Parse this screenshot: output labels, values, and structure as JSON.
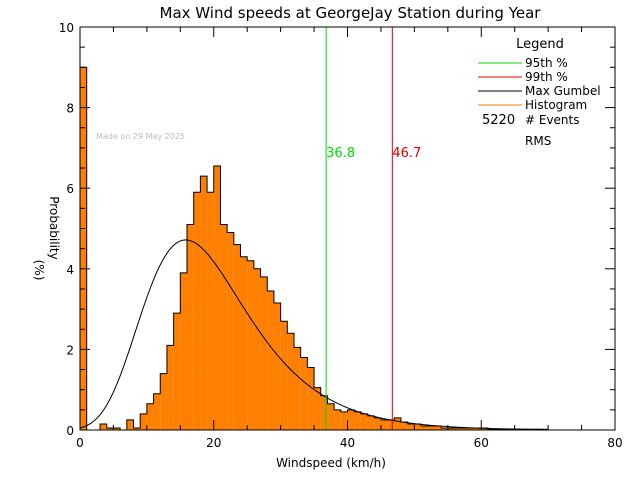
{
  "chart_data": {
    "type": "bar",
    "title": "Max Wind speeds at GeorgeJay Station during Year",
    "xlabel": "Windspeed (km/h)",
    "ylabel_top": "Probability",
    "ylabel_bottom": "(%)",
    "xlim": [
      0,
      80
    ],
    "ylim": [
      0,
      10
    ],
    "x_ticks": [
      "0",
      "20",
      "40",
      "60",
      "80"
    ],
    "y_ticks": [
      "0",
      "2",
      "4",
      "6",
      "8",
      "10"
    ],
    "watermark": "Made on 29 May 2025",
    "bin_width": 1,
    "histogram": {
      "name": "Histogram",
      "color": "#ff7f00",
      "values": [
        9.0,
        0.0,
        0.0,
        0.15,
        0.05,
        0.05,
        0.0,
        0.25,
        0.05,
        0.4,
        0.65,
        0.9,
        1.4,
        2.1,
        2.9,
        3.9,
        5.1,
        5.9,
        6.3,
        5.9,
        6.55,
        5.1,
        4.9,
        4.6,
        4.3,
        4.2,
        4.0,
        3.8,
        3.45,
        3.15,
        2.7,
        2.4,
        2.05,
        1.8,
        1.55,
        1.05,
        0.85,
        0.65,
        0.5,
        0.45,
        0.5,
        0.45,
        0.4,
        0.35,
        0.3,
        0.25,
        0.25,
        0.3,
        0.2,
        0.15,
        0.15,
        0.1,
        0.1,
        0.1,
        0.05,
        0.05,
        0.05,
        0.05,
        0.05,
        0.05,
        0.05,
        0.02,
        0.02,
        0.02,
        0.02,
        0.02,
        0.02,
        0.02,
        0.02,
        0.02,
        0.0,
        0.0,
        0.0,
        0.0,
        0.0,
        0.0,
        0.0,
        0.0,
        0.0,
        0.0
      ]
    },
    "gumbel": {
      "name": "Max Gumbel",
      "color": "#000000",
      "mode": 15.8,
      "scale": 7.8
    },
    "percentile_lines": [
      {
        "name": "95th %",
        "value": 36.8,
        "label": "36.8",
        "color": "#00dd00"
      },
      {
        "name": "99th %",
        "value": 46.7,
        "label": "46.7",
        "color": "#dd0000"
      }
    ],
    "legend": {
      "title": "Legend",
      "position": "top-right",
      "items": [
        {
          "label": "95th %",
          "color": "#00dd00"
        },
        {
          "label": "99th %",
          "color": "#dd0000"
        },
        {
          "label": "Max Gumbel",
          "color": "#000000"
        },
        {
          "label": "Histogram",
          "color": "#ff7f00"
        }
      ],
      "events_count": "5220",
      "events_label": "# Events",
      "rms_label": "RMS"
    }
  }
}
